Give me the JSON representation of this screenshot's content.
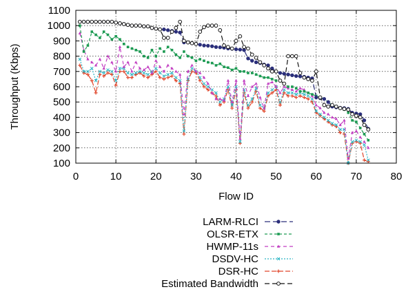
{
  "chart_data": {
    "type": "line",
    "title": "",
    "xlabel": "Flow ID",
    "ylabel": "Throughput (Kbps)",
    "xlim": [
      0,
      80
    ],
    "ylim": [
      100,
      1100
    ],
    "xticks": [
      0,
      10,
      20,
      30,
      40,
      50,
      60,
      70,
      80
    ],
    "yticks": [
      100,
      200,
      300,
      400,
      500,
      600,
      700,
      800,
      900,
      1000,
      1100
    ],
    "grid": true,
    "legend_position": "below",
    "series": [
      {
        "name": "LARM-RLCI",
        "color": "#2b2f7a",
        "dash": "8 4",
        "marker": "circle-filled",
        "x": [
          1,
          2,
          3,
          4,
          5,
          6,
          7,
          8,
          9,
          10,
          11,
          12,
          13,
          14,
          15,
          16,
          17,
          18,
          19,
          20,
          21,
          22,
          23,
          24,
          25,
          26,
          27,
          28,
          29,
          30,
          31,
          32,
          33,
          34,
          35,
          36,
          37,
          38,
          39,
          40,
          41,
          42,
          43,
          44,
          45,
          46,
          47,
          48,
          49,
          50,
          51,
          52,
          53,
          54,
          55,
          56,
          57,
          58,
          59,
          60,
          61,
          62,
          63,
          64,
          65,
          66,
          67,
          68,
          69,
          70,
          71,
          72,
          73
        ],
        "y": [
          1025,
          1025,
          1025,
          1025,
          1025,
          1025,
          1025,
          1025,
          1025,
          1020,
          1015,
          1010,
          1005,
          1000,
          1000,
          1000,
          995,
          995,
          985,
          980,
          975,
          975,
          970,
          965,
          960,
          955,
          890,
          890,
          885,
          880,
          875,
          870,
          868,
          865,
          860,
          858,
          855,
          850,
          848,
          845,
          843,
          840,
          785,
          770,
          760,
          755,
          745,
          740,
          720,
          700,
          690,
          685,
          680,
          675,
          670,
          668,
          665,
          660,
          655,
          530,
          525,
          520,
          500,
          470,
          465,
          462,
          460,
          455,
          430,
          425,
          420,
          380,
          325
        ]
      },
      {
        "name": "OLSR-ETX",
        "color": "#1c9a52",
        "dash": "4 3",
        "marker": "square",
        "x": [
          1,
          2,
          3,
          4,
          5,
          6,
          7,
          8,
          9,
          10,
          11,
          12,
          13,
          14,
          15,
          16,
          17,
          18,
          19,
          20,
          21,
          22,
          23,
          24,
          25,
          26,
          27,
          28,
          29,
          30,
          31,
          32,
          33,
          34,
          35,
          36,
          37,
          38,
          39,
          40,
          41,
          42,
          43,
          44,
          45,
          46,
          47,
          48,
          49,
          50,
          51,
          52,
          53,
          54,
          55,
          56,
          57,
          58,
          59,
          60,
          61,
          62,
          63,
          64,
          65,
          66,
          67,
          68,
          69,
          70,
          71,
          72,
          73
        ],
        "y": [
          1000,
          830,
          870,
          960,
          940,
          920,
          960,
          940,
          910,
          930,
          910,
          880,
          860,
          850,
          840,
          830,
          800,
          790,
          840,
          800,
          850,
          830,
          860,
          840,
          810,
          790,
          830,
          800,
          790,
          770,
          780,
          770,
          760,
          755,
          740,
          750,
          730,
          725,
          710,
          720,
          700,
          700,
          690,
          690,
          680,
          670,
          660,
          660,
          650,
          640,
          640,
          620,
          600,
          600,
          590,
          570,
          570,
          560,
          550,
          540,
          530,
          520,
          500,
          480,
          470,
          460,
          450,
          430,
          380,
          370,
          330,
          290,
          250
        ]
      },
      {
        "name": "HWMP-11s",
        "color": "#c23fc2",
        "dash": "5 4",
        "marker": "triangle",
        "x": [
          1,
          2,
          3,
          4,
          5,
          6,
          7,
          8,
          9,
          10,
          11,
          12,
          13,
          14,
          15,
          16,
          17,
          18,
          19,
          20,
          21,
          22,
          23,
          24,
          25,
          26,
          27,
          28,
          29,
          30,
          31,
          32,
          33,
          34,
          35,
          36,
          37,
          38,
          39,
          40,
          41,
          42,
          43,
          44,
          45,
          46,
          47,
          48,
          49,
          50,
          51,
          52,
          53,
          54,
          55,
          56,
          57,
          58,
          59,
          60,
          61,
          62,
          63,
          64,
          65,
          66,
          67,
          68,
          69,
          70,
          71,
          72,
          73
        ],
        "y": [
          950,
          840,
          780,
          760,
          740,
          780,
          720,
          800,
          760,
          700,
          860,
          730,
          760,
          700,
          760,
          720,
          710,
          730,
          690,
          770,
          730,
          700,
          740,
          720,
          700,
          680,
          420,
          700,
          740,
          700,
          690,
          660,
          620,
          560,
          520,
          520,
          510,
          640,
          500,
          640,
          260,
          640,
          540,
          600,
          620,
          530,
          460,
          620,
          630,
          600,
          560,
          600,
          590,
          580,
          570,
          590,
          580,
          560,
          540,
          480,
          460,
          430,
          420,
          400,
          390,
          350,
          380,
          130,
          300,
          310,
          270,
          240,
          200
        ]
      },
      {
        "name": "DSDV-HC",
        "color": "#2bb5c4",
        "dash": "2 2",
        "marker": "x",
        "x": [
          1,
          2,
          3,
          4,
          5,
          6,
          7,
          8,
          9,
          10,
          11,
          12,
          13,
          14,
          15,
          16,
          17,
          18,
          19,
          20,
          21,
          22,
          23,
          24,
          25,
          26,
          27,
          28,
          29,
          30,
          31,
          32,
          33,
          34,
          35,
          36,
          37,
          38,
          39,
          40,
          41,
          42,
          43,
          44,
          45,
          46,
          47,
          48,
          49,
          50,
          51,
          52,
          53,
          54,
          55,
          56,
          57,
          58,
          59,
          60,
          61,
          62,
          63,
          64,
          65,
          66,
          67,
          68,
          69,
          70,
          71,
          72,
          73
        ],
        "y": [
          780,
          700,
          700,
          720,
          640,
          700,
          690,
          710,
          700,
          640,
          720,
          720,
          690,
          680,
          690,
          700,
          690,
          680,
          700,
          720,
          690,
          670,
          680,
          690,
          660,
          640,
          310,
          650,
          720,
          700,
          660,
          620,
          600,
          580,
          560,
          500,
          520,
          600,
          480,
          600,
          240,
          580,
          480,
          520,
          590,
          480,
          460,
          560,
          580,
          600,
          500,
          580,
          560,
          560,
          550,
          560,
          550,
          540,
          520,
          440,
          420,
          400,
          380,
          360,
          350,
          320,
          320,
          100,
          240,
          250,
          240,
          220,
          120
        ]
      },
      {
        "name": "DSR-HC",
        "color": "#e0452a",
        "dash": "7 3",
        "marker": "star",
        "x": [
          1,
          2,
          3,
          4,
          5,
          6,
          7,
          8,
          9,
          10,
          11,
          12,
          13,
          14,
          15,
          16,
          17,
          18,
          19,
          20,
          21,
          22,
          23,
          24,
          25,
          26,
          27,
          28,
          29,
          30,
          31,
          32,
          33,
          34,
          35,
          36,
          37,
          38,
          39,
          40,
          41,
          42,
          43,
          44,
          45,
          46,
          47,
          48,
          49,
          50,
          51,
          52,
          53,
          54,
          55,
          56,
          57,
          58,
          59,
          60,
          61,
          62,
          63,
          64,
          65,
          66,
          67,
          68,
          69,
          70,
          71,
          72,
          73
        ],
        "y": [
          740,
          690,
          680,
          640,
          560,
          680,
          670,
          690,
          680,
          610,
          700,
          700,
          660,
          660,
          680,
          690,
          670,
          660,
          680,
          700,
          660,
          650,
          660,
          670,
          640,
          620,
          290,
          640,
          700,
          690,
          640,
          600,
          580,
          560,
          540,
          480,
          500,
          580,
          460,
          580,
          230,
          560,
          460,
          500,
          570,
          460,
          440,
          540,
          560,
          580,
          480,
          560,
          540,
          540,
          530,
          540,
          530,
          520,
          500,
          430,
          410,
          390,
          370,
          350,
          340,
          300,
          290,
          90,
          230,
          240,
          230,
          120,
          110
        ]
      },
      {
        "name": "Estimated Bandwidth",
        "color": "#111111",
        "dash": "7 4",
        "marker": "circle-open",
        "x": [
          1,
          2,
          3,
          4,
          5,
          6,
          7,
          8,
          9,
          10,
          11,
          12,
          13,
          14,
          15,
          16,
          17,
          18,
          19,
          20,
          21,
          22,
          23,
          24,
          25,
          26,
          27,
          28,
          29,
          30,
          31,
          32,
          33,
          34,
          35,
          36,
          37,
          38,
          39,
          40,
          41,
          42,
          43,
          44,
          45,
          46,
          47,
          48,
          49,
          50,
          51,
          52,
          53,
          54,
          55,
          56,
          57,
          58,
          59,
          60,
          61,
          62,
          63,
          64,
          65,
          66,
          67,
          68,
          69,
          70,
          71,
          72,
          73
        ],
        "y": [
          1025,
          1025,
          1025,
          1025,
          1025,
          1025,
          1025,
          1025,
          1025,
          1020,
          1015,
          1010,
          1005,
          1000,
          1000,
          1000,
          995,
          995,
          985,
          980,
          975,
          920,
          920,
          960,
          985,
          1025,
          900,
          890,
          885,
          880,
          960,
          990,
          1000,
          1000,
          1000,
          970,
          870,
          860,
          850,
          900,
          930,
          860,
          850,
          810,
          790,
          760,
          740,
          720,
          700,
          700,
          640,
          620,
          800,
          800,
          800,
          690,
          660,
          650,
          640,
          700,
          530,
          480,
          470,
          480,
          470,
          460,
          455,
          450,
          420,
          410,
          400,
          350,
          320
        ]
      }
    ]
  }
}
